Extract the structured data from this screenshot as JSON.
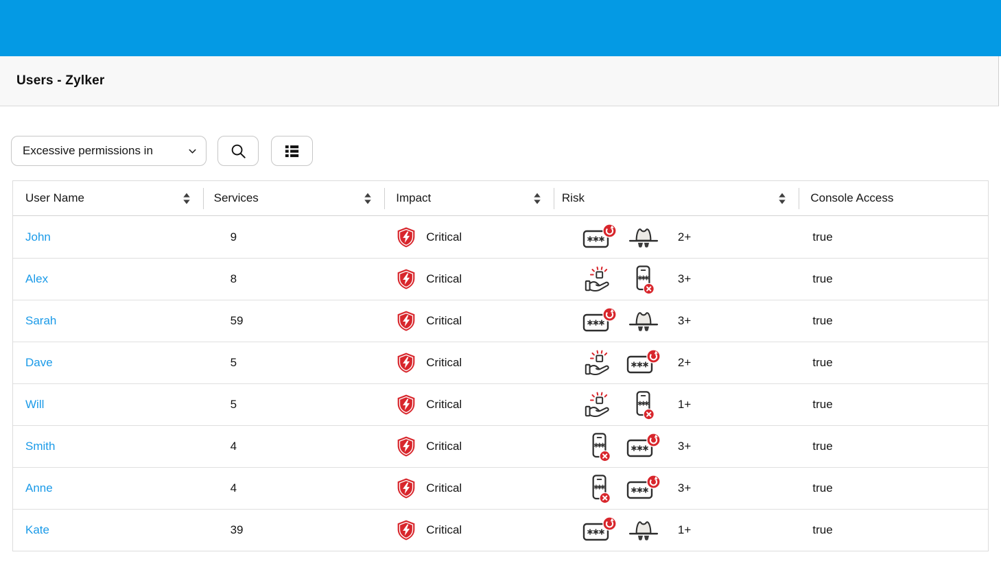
{
  "titlebar": {
    "title": "Users - Zylker"
  },
  "toolbar": {
    "filter_dropdown": {
      "value": "Excessive permissions in",
      "icon": "chevron-down"
    },
    "search_button": {
      "icon": "search"
    },
    "view_button": {
      "icon": "list-view"
    }
  },
  "table": {
    "columns": [
      {
        "label": "User Name",
        "sortable": true
      },
      {
        "label": "Services",
        "sortable": true
      },
      {
        "label": "Impact",
        "sortable": true
      },
      {
        "label": "Risk",
        "sortable": true
      },
      {
        "label": "Console Access",
        "sortable": false
      }
    ],
    "rows": [
      {
        "user": "John",
        "services": "9",
        "impact": {
          "icon": "shield-critical",
          "label": "Critical"
        },
        "risk": {
          "icons": [
            "password-rotation",
            "incognito-user"
          ],
          "count": "2+"
        },
        "console_access": "true"
      },
      {
        "user": "Alex",
        "services": "8",
        "impact": {
          "icon": "shield-critical",
          "label": "Critical"
        },
        "risk": {
          "icons": [
            "access-grant",
            "mfa-disabled"
          ],
          "count": "3+"
        },
        "console_access": "true"
      },
      {
        "user": "Sarah",
        "services": "59",
        "impact": {
          "icon": "shield-critical",
          "label": "Critical"
        },
        "risk": {
          "icons": [
            "password-rotation",
            "incognito-user"
          ],
          "count": "3+"
        },
        "console_access": "true"
      },
      {
        "user": "Dave",
        "services": "5",
        "impact": {
          "icon": "shield-critical",
          "label": "Critical"
        },
        "risk": {
          "icons": [
            "access-grant",
            "password-rotation"
          ],
          "count": "2+"
        },
        "console_access": "true"
      },
      {
        "user": "Will",
        "services": "5",
        "impact": {
          "icon": "shield-critical",
          "label": "Critical"
        },
        "risk": {
          "icons": [
            "access-grant",
            "mfa-disabled"
          ],
          "count": "1+"
        },
        "console_access": "true"
      },
      {
        "user": "Smith",
        "services": "4",
        "impact": {
          "icon": "shield-critical",
          "label": "Critical"
        },
        "risk": {
          "icons": [
            "mfa-disabled",
            "password-rotation"
          ],
          "count": "3+"
        },
        "console_access": "true"
      },
      {
        "user": "Anne",
        "services": "4",
        "impact": {
          "icon": "shield-critical",
          "label": "Critical"
        },
        "risk": {
          "icons": [
            "mfa-disabled",
            "password-rotation"
          ],
          "count": "3+"
        },
        "console_access": "true"
      },
      {
        "user": "Kate",
        "services": "39",
        "impact": {
          "icon": "shield-critical",
          "label": "Critical"
        },
        "risk": {
          "icons": [
            "password-rotation",
            "incognito-user"
          ],
          "count": "1+"
        },
        "console_access": "true"
      }
    ]
  },
  "colors": {
    "brand_blue": "#049ae4",
    "link_blue": "#1a9ae8",
    "alert_red": "#d8262c"
  }
}
